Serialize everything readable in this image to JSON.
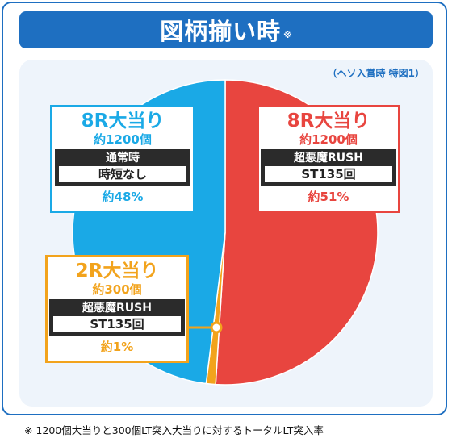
{
  "header": {
    "title": "図柄揃い時",
    "title_note": "※"
  },
  "caption": "（ヘソ入賞時 特図1）",
  "footnote": "※ 1200個大当りと300個LT突入大当りに対するトータルLT突入率",
  "colors": {
    "blue": "#1e6fc1",
    "red": "#e8453f",
    "sky": "#1aa9e6",
    "orange": "#f2a31c"
  },
  "callouts": {
    "red": {
      "headline": "8R大当り",
      "sub": "約1200個",
      "tag_title": "超悪魔RUSH",
      "tag_body": "ST135回",
      "pct": "約51%"
    },
    "blue": {
      "headline": "8R大当り",
      "sub": "約1200個",
      "tag_title": "通常時",
      "tag_body": "時短なし",
      "pct": "約48%"
    },
    "orange": {
      "headline": "2R大当り",
      "sub": "約300個",
      "tag_title": "超悪魔RUSH",
      "tag_body": "ST135回",
      "pct": "約1%"
    }
  },
  "chart_data": {
    "type": "pie",
    "slices": [
      {
        "label": "8R大当り 約1200個 超悪魔RUSH ST135回",
        "value": 51,
        "color": "#e8453f"
      },
      {
        "label": "2R大当り 約300個 超悪魔RUSH ST135回",
        "value": 1,
        "color": "#f2a31c"
      },
      {
        "label": "8R大当り 約1200個 通常時 時短なし",
        "value": 48,
        "color": "#1aa9e6"
      }
    ]
  }
}
